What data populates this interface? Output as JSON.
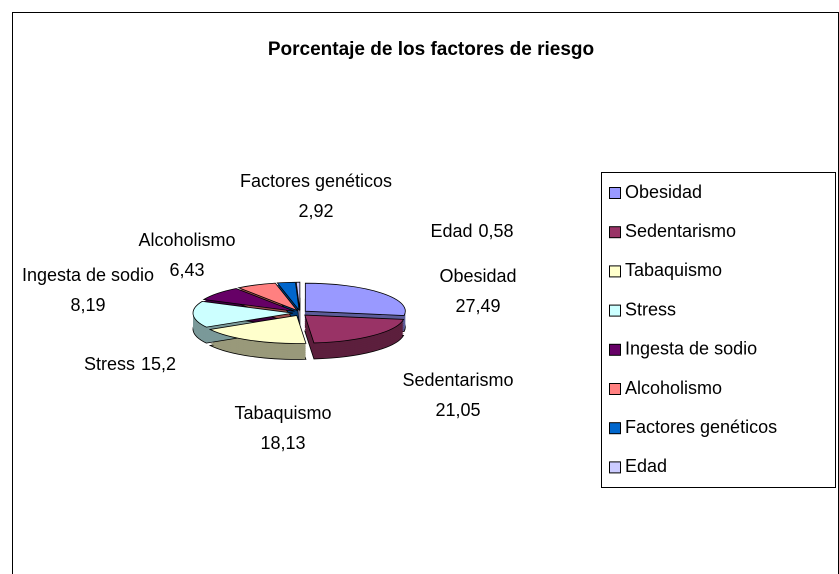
{
  "chart_data": {
    "type": "pie",
    "title": "Porcentaje de los factores de riesgo",
    "categories": [
      "Obesidad",
      "Sedentarismo",
      "Tabaquismo",
      "Stress",
      "Ingesta de sodio",
      "Alcoholismo",
      "Factores genéticos",
      "Edad"
    ],
    "values": [
      27.49,
      21.05,
      18.13,
      15.2,
      8.19,
      6.43,
      2.92,
      0.58
    ],
    "value_labels": [
      "27,49",
      "21,05",
      "18,13",
      "15,2",
      "8,19",
      "6,43",
      "2,92",
      "0,58"
    ],
    "colors": [
      "#9999ff",
      "#993366",
      "#ffffcc",
      "#ccffff",
      "#660066",
      "#ff8080",
      "#0066cc",
      "#ccccff"
    ],
    "legend": "right"
  }
}
